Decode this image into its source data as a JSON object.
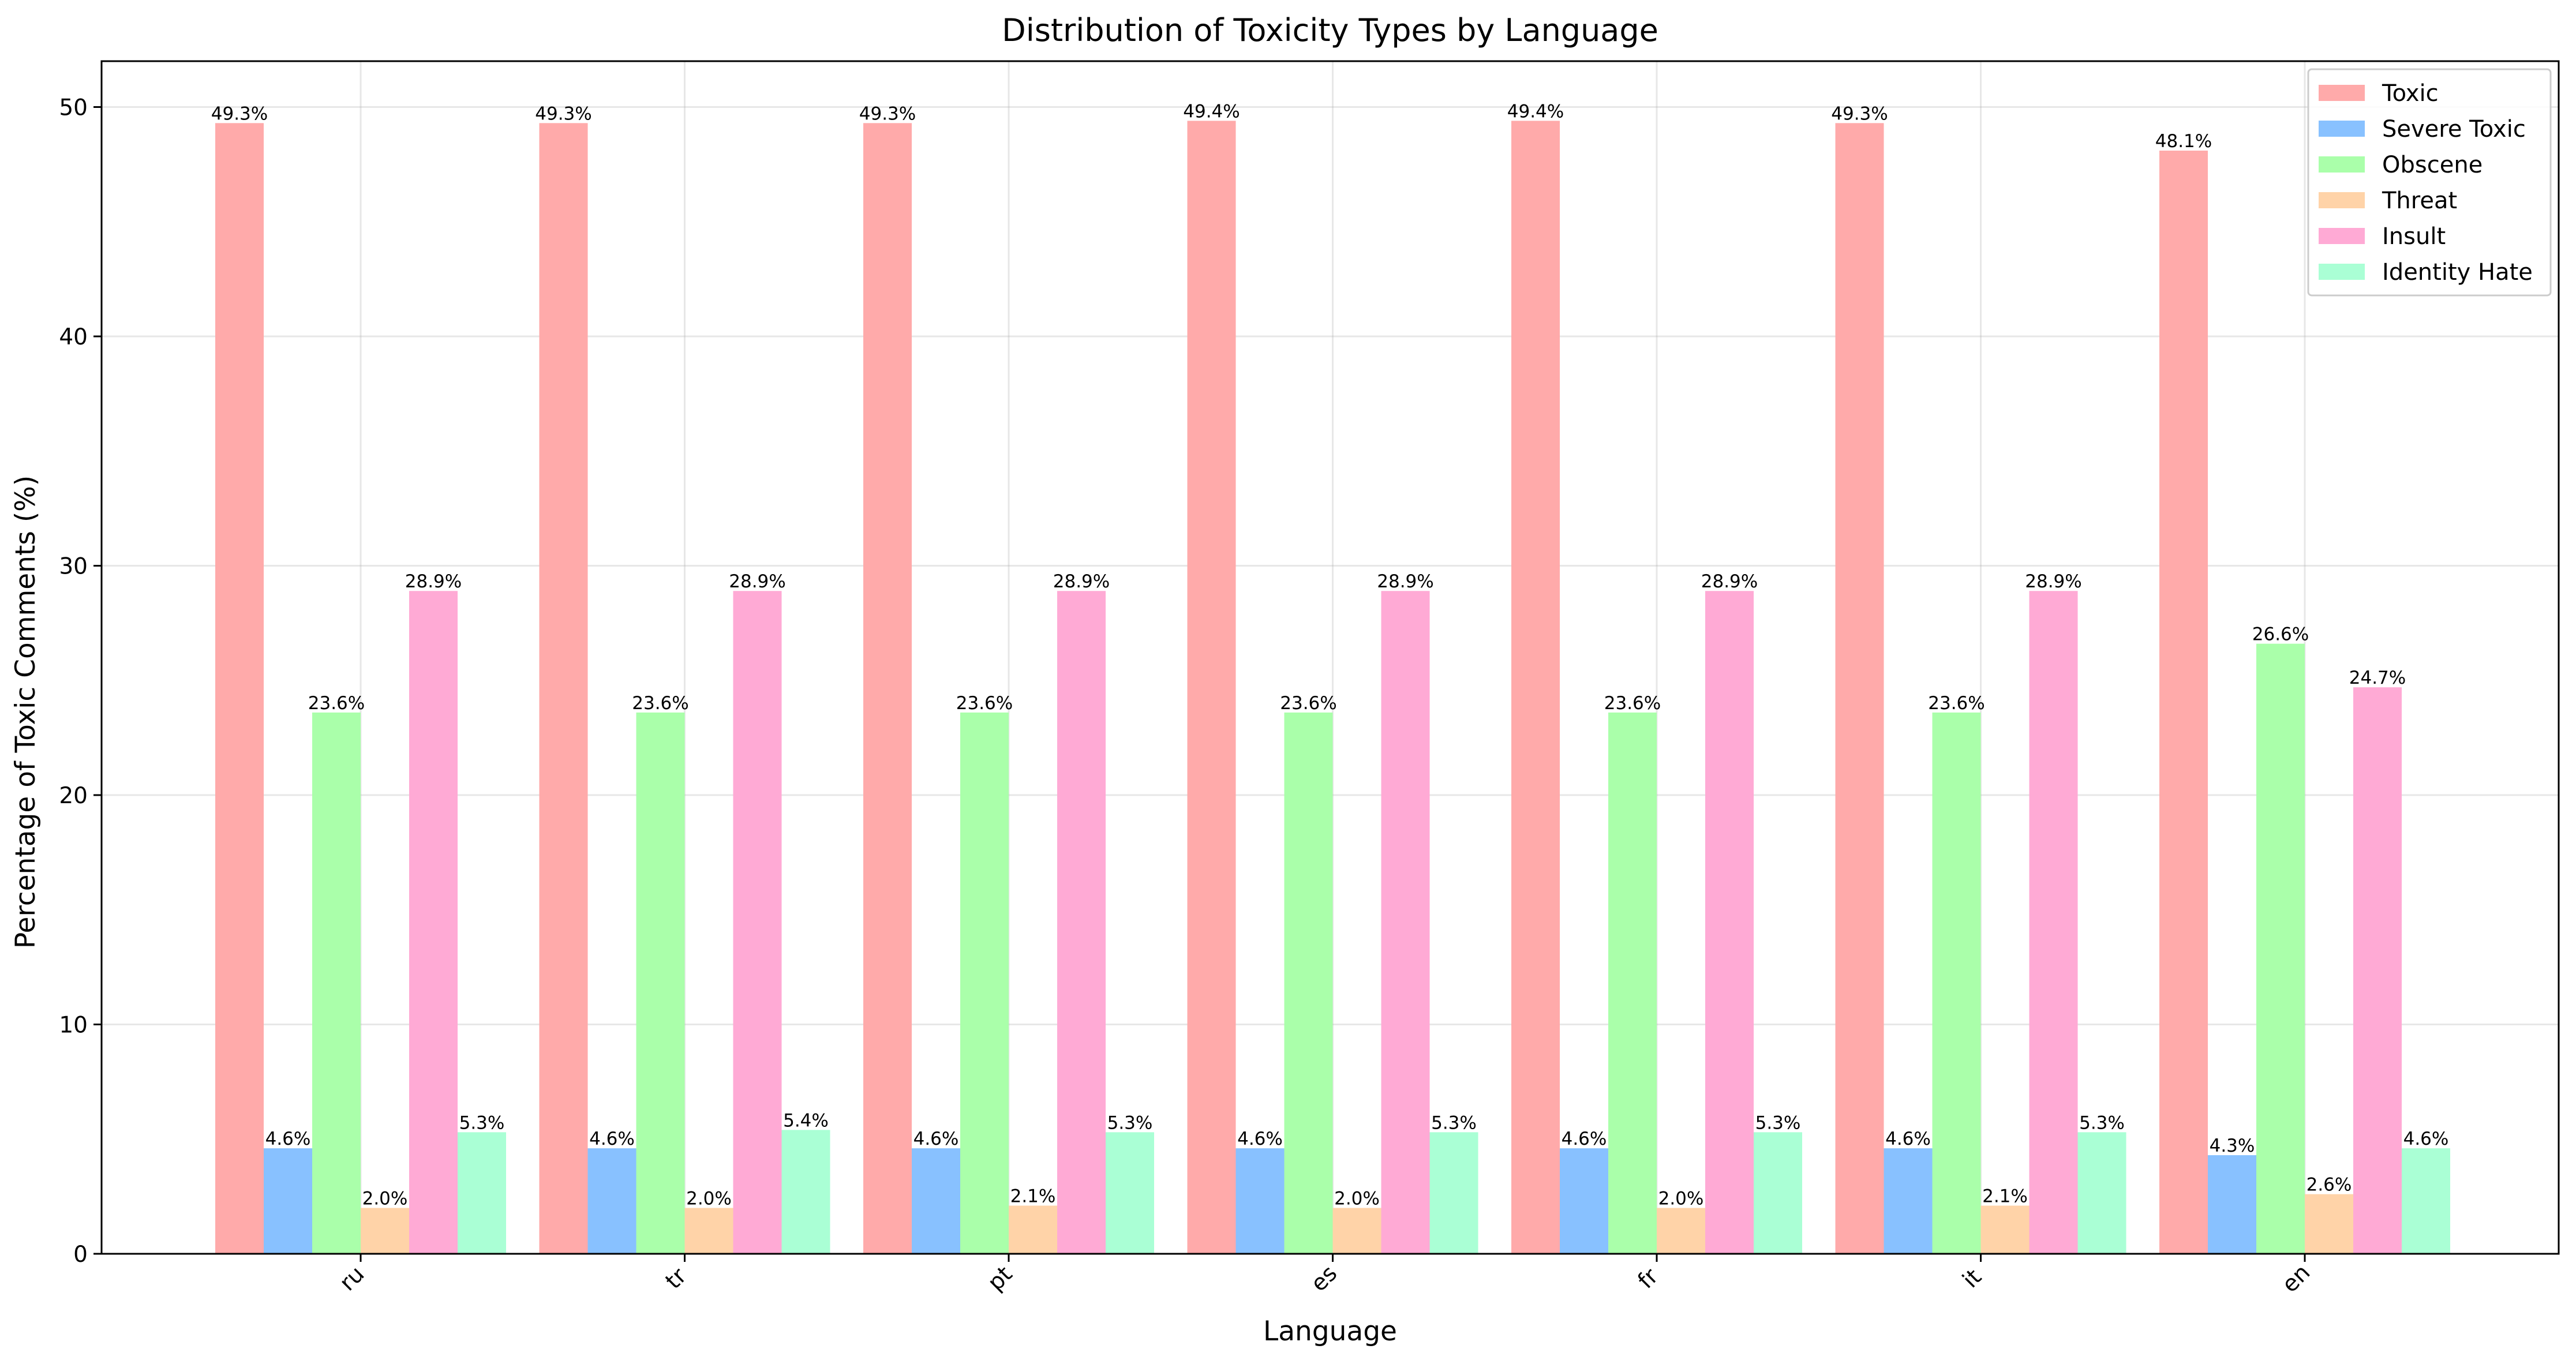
{
  "chart_data": {
    "type": "bar",
    "title": "Distribution of Toxicity Types by Language",
    "xlabel": "Language",
    "ylabel": "Percentage of Toxic Comments (%)",
    "ylim": [
      0,
      52
    ],
    "yticks": [
      "0",
      "10",
      "20",
      "30",
      "40",
      "50"
    ],
    "categories": [
      "ru",
      "tr",
      "pt",
      "es",
      "fr",
      "it",
      "en"
    ],
    "grid": true,
    "legend_position": "top-right",
    "series": [
      {
        "name": "Toxic",
        "color": "#ffaaaa",
        "values": [
          49.3,
          49.3,
          49.3,
          49.4,
          49.4,
          49.3,
          48.1
        ],
        "labels": [
          "49.3%",
          "49.3%",
          "49.3%",
          "49.4%",
          "49.4%",
          "49.3%",
          "48.1%"
        ]
      },
      {
        "name": "Severe Toxic",
        "color": "#88c1ff",
        "values": [
          4.6,
          4.6,
          4.6,
          4.6,
          4.6,
          4.6,
          4.3
        ],
        "labels": [
          "4.6%",
          "4.6%",
          "4.6%",
          "4.6%",
          "4.6%",
          "4.6%",
          "4.3%"
        ]
      },
      {
        "name": "Obscene",
        "color": "#aaffaa",
        "values": [
          23.6,
          23.6,
          23.6,
          23.6,
          23.6,
          23.6,
          26.6
        ],
        "labels": [
          "23.6%",
          "23.6%",
          "23.6%",
          "23.6%",
          "23.6%",
          "23.6%",
          "26.6%"
        ]
      },
      {
        "name": "Threat",
        "color": "#ffd3a8",
        "values": [
          2.0,
          2.0,
          2.1,
          2.0,
          2.0,
          2.1,
          2.6
        ],
        "labels": [
          "2.0%",
          "2.0%",
          "2.1%",
          "2.0%",
          "2.0%",
          "2.1%",
          "2.6%"
        ]
      },
      {
        "name": "Insult",
        "color": "#ffaad5",
        "values": [
          28.9,
          28.9,
          28.9,
          28.9,
          28.9,
          28.9,
          24.7
        ],
        "labels": [
          "28.9%",
          "28.9%",
          "28.9%",
          "28.9%",
          "28.9%",
          "28.9%",
          "24.7%"
        ]
      },
      {
        "name": "Identity Hate",
        "color": "#aaffd5",
        "values": [
          5.3,
          5.4,
          5.3,
          5.3,
          5.3,
          5.3,
          4.6
        ],
        "labels": [
          "5.3%",
          "5.4%",
          "5.3%",
          "5.3%",
          "5.3%",
          "5.3%",
          "4.6%"
        ]
      }
    ]
  }
}
